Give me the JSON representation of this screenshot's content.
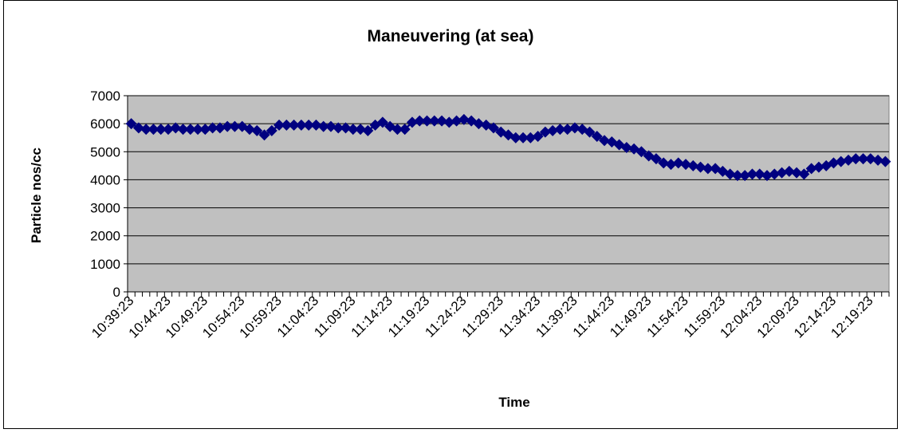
{
  "chart_data": {
    "type": "line",
    "title": "Maneuvering (at sea)",
    "x_label": "Time",
    "y_label": "Particle nos/cc",
    "categories": [
      "10:39:23",
      null,
      null,
      null,
      null,
      "10:44:23",
      null,
      null,
      null,
      null,
      "10:49:23",
      null,
      null,
      null,
      null,
      "10:54:23",
      null,
      null,
      null,
      null,
      "10:59:23",
      null,
      null,
      null,
      null,
      "11:04:23",
      null,
      null,
      null,
      null,
      "11:09:23",
      null,
      null,
      null,
      null,
      "11:14:23",
      null,
      null,
      null,
      null,
      "11:19:23",
      null,
      null,
      null,
      null,
      "11:24:23",
      null,
      null,
      null,
      null,
      "11:29:23",
      null,
      null,
      null,
      null,
      "11:34:23",
      null,
      null,
      null,
      null,
      "11:39:23",
      null,
      null,
      null,
      null,
      "11:44:23",
      null,
      null,
      null,
      null,
      "11:49:23",
      null,
      null,
      null,
      null,
      "11:54:23",
      null,
      null,
      null,
      null,
      "11:59:23",
      null,
      null,
      null,
      null,
      "12:04:23",
      null,
      null,
      null,
      null,
      "12:09:23",
      null,
      null,
      null,
      null,
      "12:14:23",
      null,
      null,
      null,
      null,
      "12:19:23",
      null,
      null
    ],
    "series": [
      {
        "name": "Particle nos/cc",
        "color": "#000080",
        "values": [
          6000,
          5850,
          5800,
          5800,
          5800,
          5800,
          5850,
          5800,
          5800,
          5800,
          5800,
          5850,
          5850,
          5900,
          5900,
          5900,
          5800,
          5750,
          5600,
          5750,
          5950,
          5950,
          5950,
          5950,
          5950,
          5950,
          5900,
          5900,
          5850,
          5850,
          5800,
          5800,
          5750,
          5950,
          6050,
          5900,
          5800,
          5800,
          6050,
          6100,
          6100,
          6100,
          6100,
          6050,
          6100,
          6150,
          6100,
          6000,
          5950,
          5850,
          5700,
          5600,
          5500,
          5500,
          5500,
          5550,
          5700,
          5750,
          5800,
          5800,
          5850,
          5800,
          5700,
          5550,
          5400,
          5350,
          5250,
          5150,
          5100,
          5000,
          4850,
          4750,
          4600,
          4550,
          4600,
          4550,
          4500,
          4450,
          4400,
          4400,
          4300,
          4200,
          4150,
          4150,
          4200,
          4200,
          4150,
          4200,
          4250,
          4300,
          4250,
          4200,
          4400,
          4450,
          4500,
          4600,
          4650,
          4700,
          4750,
          4750,
          4750,
          4700,
          4650
        ]
      }
    ],
    "ylim": [
      0,
      7000
    ],
    "yticks": [
      0,
      1000,
      2000,
      3000,
      4000,
      5000,
      6000,
      7000
    ],
    "grid": true,
    "plot_background": "#c0c0c0"
  }
}
